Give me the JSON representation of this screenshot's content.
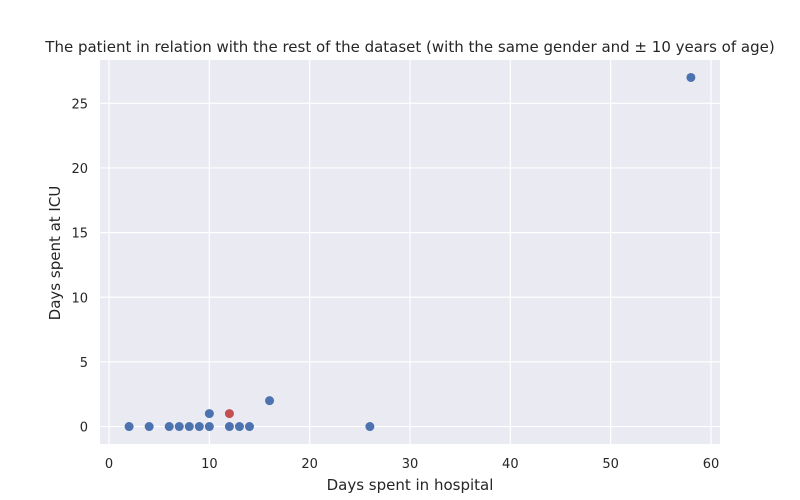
{
  "chart_data": {
    "type": "scatter",
    "title": "The patient in relation with the rest of the dataset (with the same gender and ± 10 years of age)",
    "xlabel": "Days spent in hospital",
    "ylabel": "Days spent at ICU",
    "xlim": [
      -0.9,
      60.9
    ],
    "ylim": [
      -1.35,
      28.35
    ],
    "xticks": [
      0,
      10,
      20,
      30,
      40,
      50,
      60
    ],
    "yticks": [
      0,
      5,
      10,
      15,
      20,
      25
    ],
    "grid": true,
    "background": "#eaeaf2",
    "series": [
      {
        "color": "#4c72b0",
        "points": [
          {
            "x": 2,
            "y": 0
          },
          {
            "x": 4,
            "y": 0
          },
          {
            "x": 6,
            "y": 0
          },
          {
            "x": 7,
            "y": 0
          },
          {
            "x": 8,
            "y": 0
          },
          {
            "x": 9,
            "y": 0
          },
          {
            "x": 10,
            "y": 0
          },
          {
            "x": 10,
            "y": 1
          },
          {
            "x": 12,
            "y": 0
          },
          {
            "x": 13,
            "y": 0
          },
          {
            "x": 14,
            "y": 0
          },
          {
            "x": 16,
            "y": 2
          },
          {
            "x": 26,
            "y": 0
          },
          {
            "x": 58,
            "y": 27
          }
        ]
      },
      {
        "color": "#c44e52",
        "points": [
          {
            "x": 12,
            "y": 1
          }
        ]
      }
    ]
  }
}
